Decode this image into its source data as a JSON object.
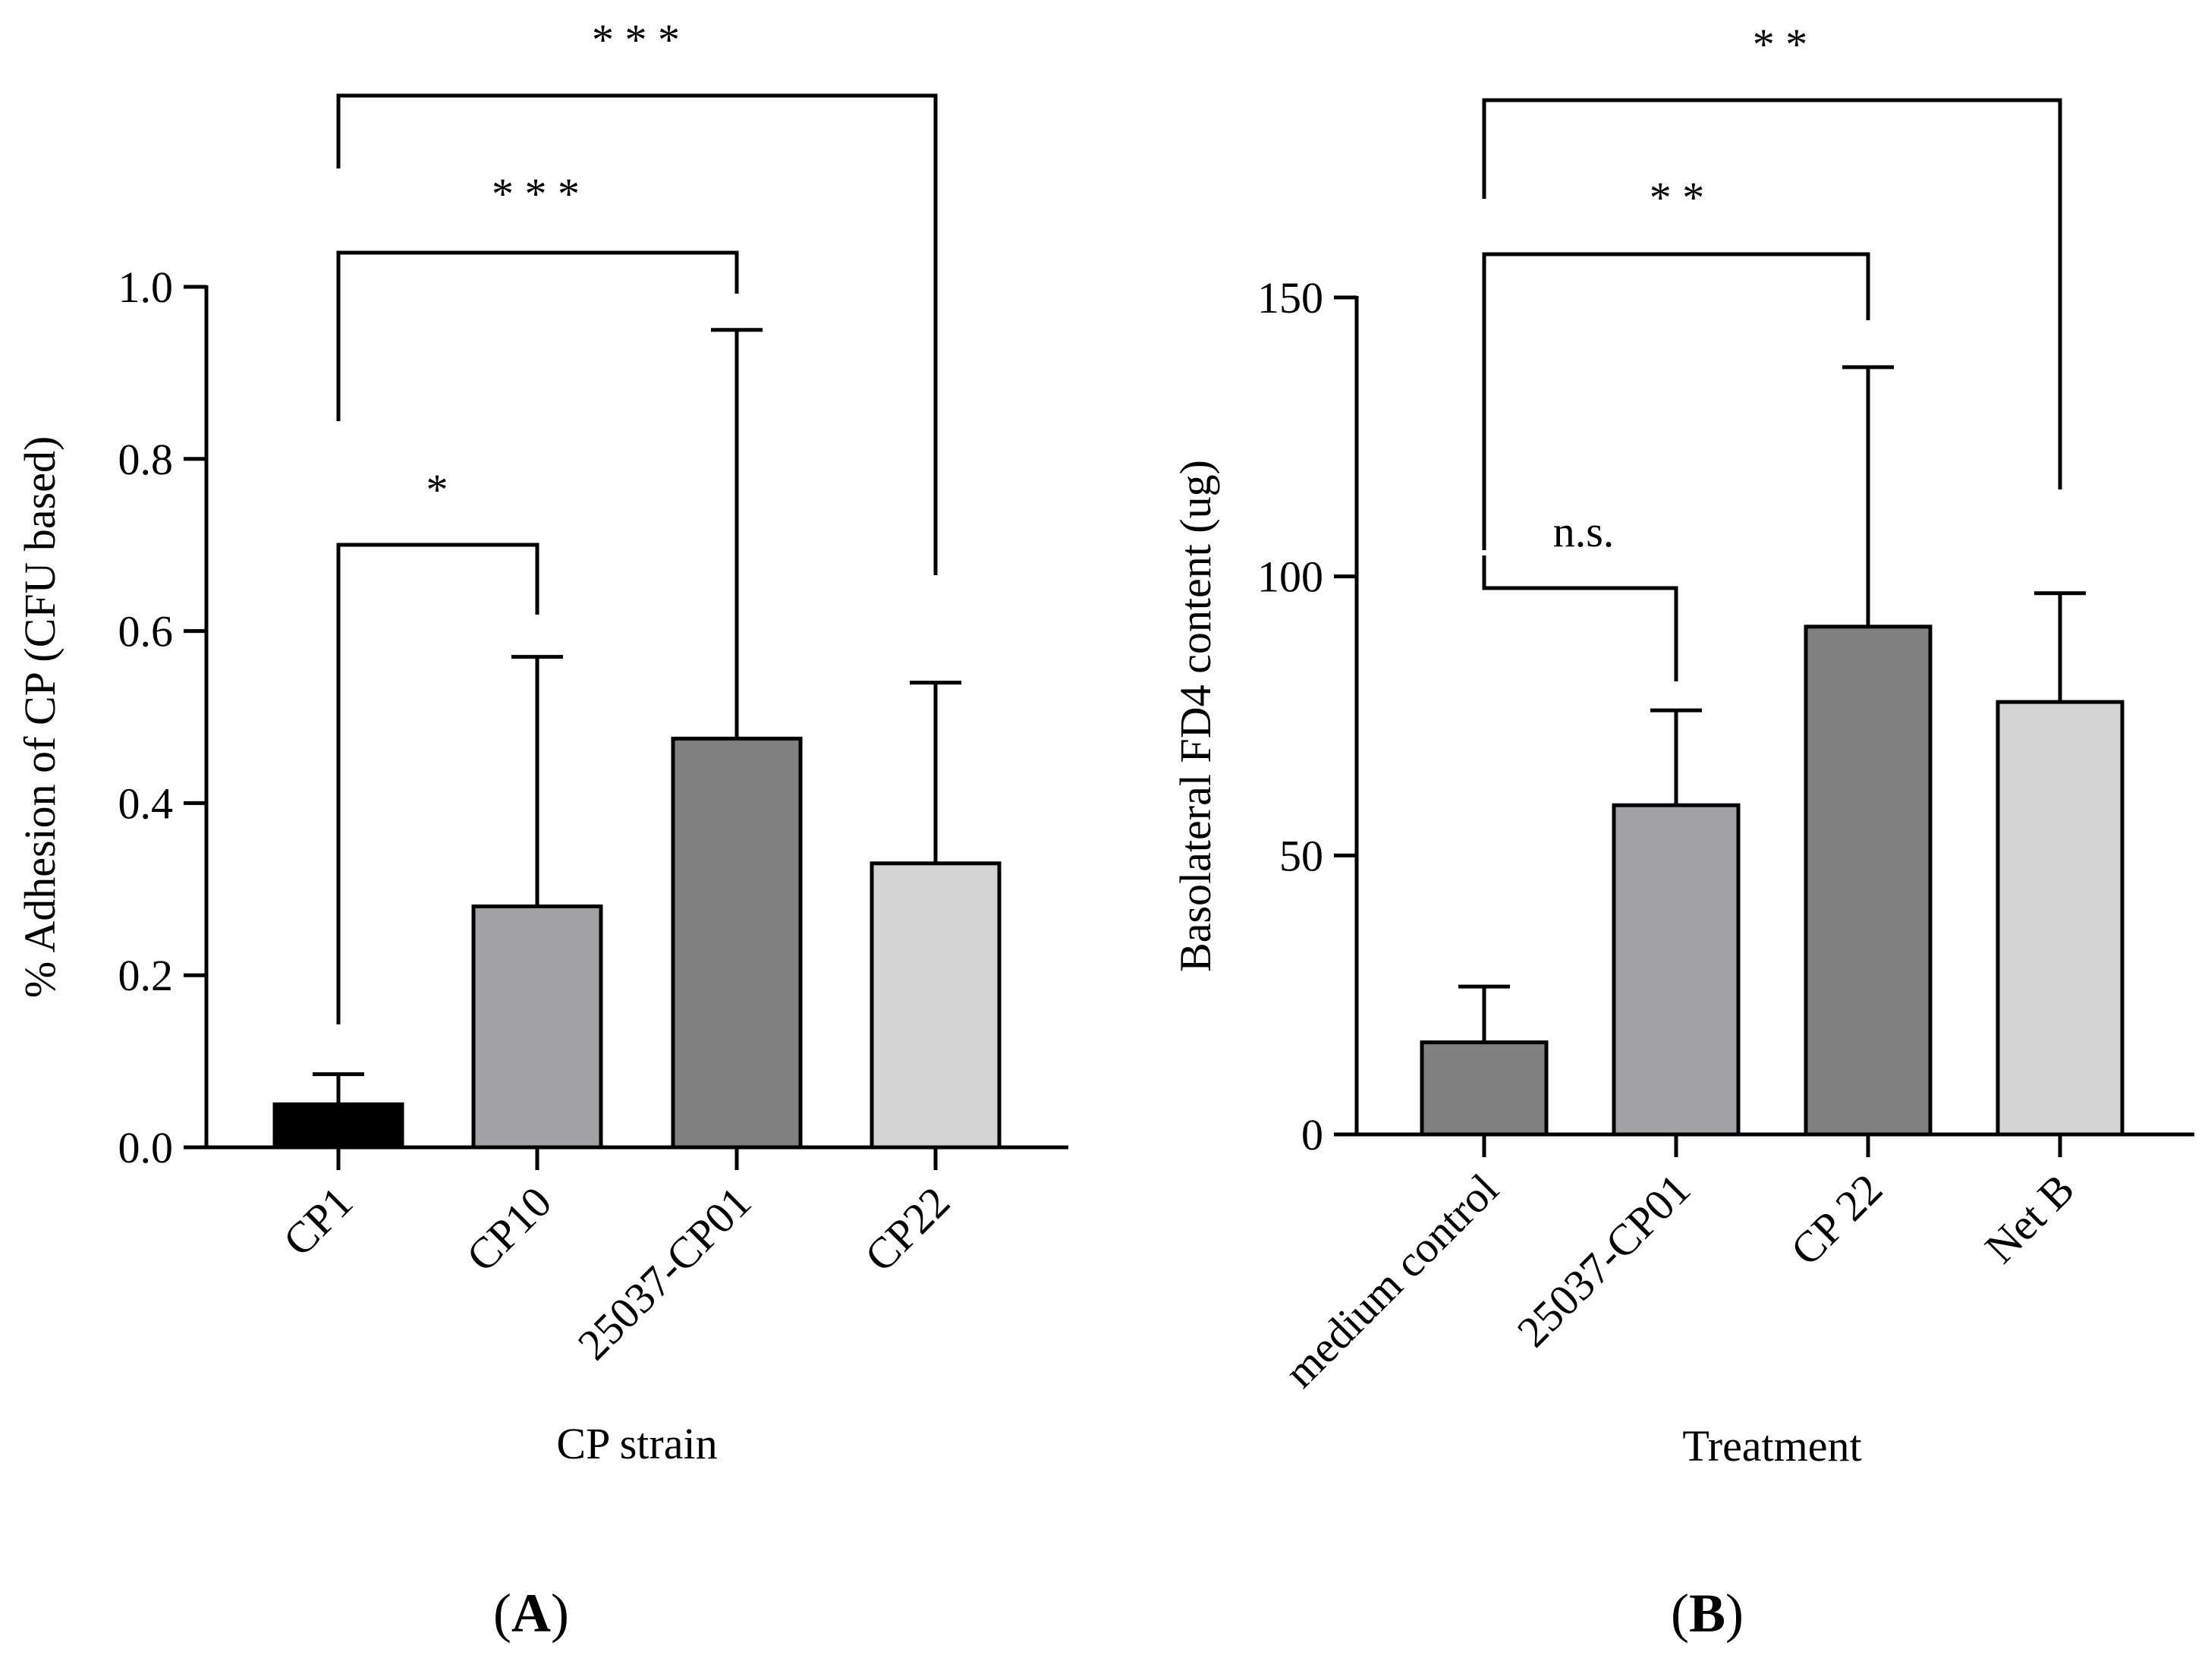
{
  "chart_data": [
    {
      "type": "bar",
      "panel": "(A)",
      "panel_letter": "A",
      "categories": [
        "CP1",
        "CP10",
        "25037-CP01",
        "CP22"
      ],
      "values": [
        0.05,
        0.28,
        0.475,
        0.33
      ],
      "errors": [
        0.035,
        0.29,
        0.475,
        0.21
      ],
      "bar_colors": [
        "#000000",
        "#a2a2a6",
        "#808080",
        "#d4d4d4"
      ],
      "xlabel": "CP strain",
      "ylabel": "% Adhesion of CP (CFU based)",
      "ylim": [
        0,
        1.0
      ],
      "yticks": [
        0.0,
        0.2,
        0.4,
        0.6,
        0.8,
        1.0
      ],
      "ytick_labels": [
        "0.0",
        "0.2",
        "0.4",
        "0.6",
        "0.8",
        "1.0"
      ],
      "significance": [
        {
          "from": "CP1",
          "to": "CP10",
          "label": "*"
        },
        {
          "from": "CP1",
          "to": "25037-CP01",
          "label": "* * *"
        },
        {
          "from": "CP1",
          "to": "CP22",
          "label": "* * *"
        }
      ]
    },
    {
      "type": "bar",
      "panel": "(B)",
      "panel_letter": "B",
      "categories": [
        "medium control",
        "25037-CP01",
        "CP 22",
        "Net B"
      ],
      "values": [
        16.5,
        59,
        91,
        77.5
      ],
      "errors": [
        10,
        17,
        46.5,
        19.5
      ],
      "bar_colors": [
        "#808080",
        "#a2a2a6",
        "#808080",
        "#d4d4d4"
      ],
      "xlabel": "Treatment",
      "ylabel": "Basolateral FD4 content (ug)",
      "ylim": [
        0,
        150
      ],
      "yticks": [
        0,
        50,
        100,
        150
      ],
      "ytick_labels": [
        "0",
        "50",
        "100",
        "150"
      ],
      "significance": [
        {
          "from": "medium control",
          "to": "25037-CP01",
          "label": "n.s."
        },
        {
          "from": "medium control",
          "to": "CP 22",
          "label": "* *"
        },
        {
          "from": "medium control",
          "to": "Net B",
          "label": "* *"
        }
      ]
    }
  ]
}
